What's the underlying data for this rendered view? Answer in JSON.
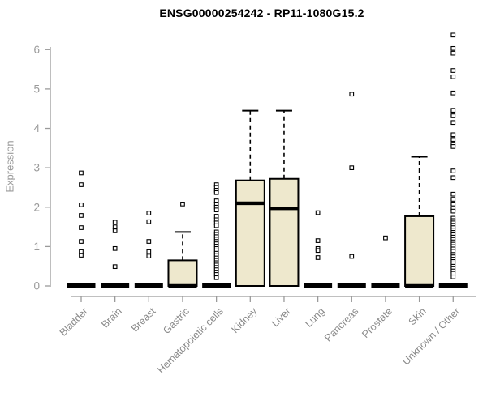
{
  "chart_data": {
    "type": "boxplot",
    "title": "ENSG00000254242 - RP11-1080G15.2",
    "ylabel": "Expression",
    "xlabel": "",
    "ylim": [
      0,
      6.5
    ],
    "yticks": [
      0,
      1,
      2,
      3,
      4,
      5,
      6
    ],
    "grid": false,
    "legend": "none",
    "categories": [
      "Bladder",
      "Brain",
      "Breast",
      "Gastric",
      "Hematopoietic cells",
      "Kidney",
      "Liver",
      "Lung",
      "Pancreas",
      "Prostate",
      "Skin",
      "Unknown / Other"
    ],
    "series": [
      {
        "name": "Bladder",
        "whisker_low": 0,
        "q1": 0,
        "median": 0,
        "q3": 0,
        "whisker_high": 0,
        "outliers": [
          2.87,
          2.57,
          2.06,
          1.79,
          1.48,
          1.13,
          0.87,
          0.78
        ]
      },
      {
        "name": "Brain",
        "whisker_low": 0,
        "q1": 0,
        "median": 0,
        "q3": 0,
        "whisker_high": 0,
        "outliers": [
          1.62,
          1.5,
          1.4,
          0.95,
          0.49
        ]
      },
      {
        "name": "Breast",
        "whisker_low": 0,
        "q1": 0,
        "median": 0,
        "q3": 0,
        "whisker_high": 0,
        "outliers": [
          1.85,
          1.63,
          1.13,
          0.87,
          0.76
        ]
      },
      {
        "name": "Gastric",
        "whisker_low": 0,
        "q1": 0,
        "median": 0,
        "q3": 0.65,
        "whisker_high": 1.37,
        "outliers": [
          2.08
        ]
      },
      {
        "name": "Hematopoietic cells",
        "whisker_low": 0,
        "q1": 0,
        "median": 0,
        "q3": 0,
        "whisker_high": 0,
        "outliers": [
          2.57,
          2.5,
          2.43,
          2.37,
          2.16,
          2.08,
          2.0,
          1.93,
          1.77,
          1.68,
          1.6,
          1.53,
          1.37,
          1.31,
          1.25,
          1.19,
          1.13,
          1.07,
          1.01,
          0.95,
          0.89,
          0.83,
          0.77,
          0.71,
          0.65,
          0.59,
          0.53,
          0.47,
          0.41,
          0.35,
          0.29,
          0.21
        ]
      },
      {
        "name": "Kidney",
        "whisker_low": 0,
        "q1": 0,
        "median": 2.1,
        "q3": 2.68,
        "whisker_high": 4.45,
        "outliers": []
      },
      {
        "name": "Liver",
        "whisker_low": 0,
        "q1": 0,
        "median": 1.97,
        "q3": 2.72,
        "whisker_high": 4.45,
        "outliers": []
      },
      {
        "name": "Lung",
        "whisker_low": 0,
        "q1": 0,
        "median": 0,
        "q3": 0,
        "whisker_high": 0,
        "outliers": [
          1.86,
          1.15,
          0.95,
          0.9,
          0.72
        ]
      },
      {
        "name": "Pancreas",
        "whisker_low": 0,
        "q1": 0,
        "median": 0,
        "q3": 0,
        "whisker_high": 0,
        "outliers": [
          4.87,
          3.0,
          0.75
        ]
      },
      {
        "name": "Prostate",
        "whisker_low": 0,
        "q1": 0,
        "median": 0,
        "q3": 0,
        "whisker_high": 0,
        "outliers": [
          1.22
        ]
      },
      {
        "name": "Skin",
        "whisker_low": 0,
        "q1": 0,
        "median": 0,
        "q3": 1.77,
        "whisker_high": 3.28,
        "outliers": []
      },
      {
        "name": "Unknown / Other",
        "whisker_low": 0,
        "q1": 0,
        "median": 0,
        "q3": 0,
        "whisker_high": 0,
        "outliers": [
          6.37,
          6.03,
          5.91,
          5.47,
          5.31,
          4.9,
          4.46,
          4.32,
          4.15,
          3.84,
          3.72,
          3.6,
          3.54,
          2.92,
          2.75,
          2.33,
          2.2,
          2.08,
          1.96,
          1.9,
          1.72,
          1.66,
          1.6,
          1.54,
          1.48,
          1.42,
          1.36,
          1.3,
          1.24,
          1.18,
          1.12,
          1.06,
          1.0,
          0.94,
          0.88,
          0.8,
          0.74,
          0.68,
          0.62,
          0.56,
          0.5,
          0.44,
          0.38,
          0.32,
          0.23
        ]
      }
    ],
    "colors": {
      "box_fill": "#EEE8CD",
      "box_stroke": "#000000",
      "median": "#000000",
      "outlier_fill": "#ffffff",
      "outlier_stroke": "#000000",
      "axis": "#9a9a9a",
      "tick_label": "#9a9a9a",
      "category_label": "#8a8a8a",
      "title": "#000000"
    }
  }
}
